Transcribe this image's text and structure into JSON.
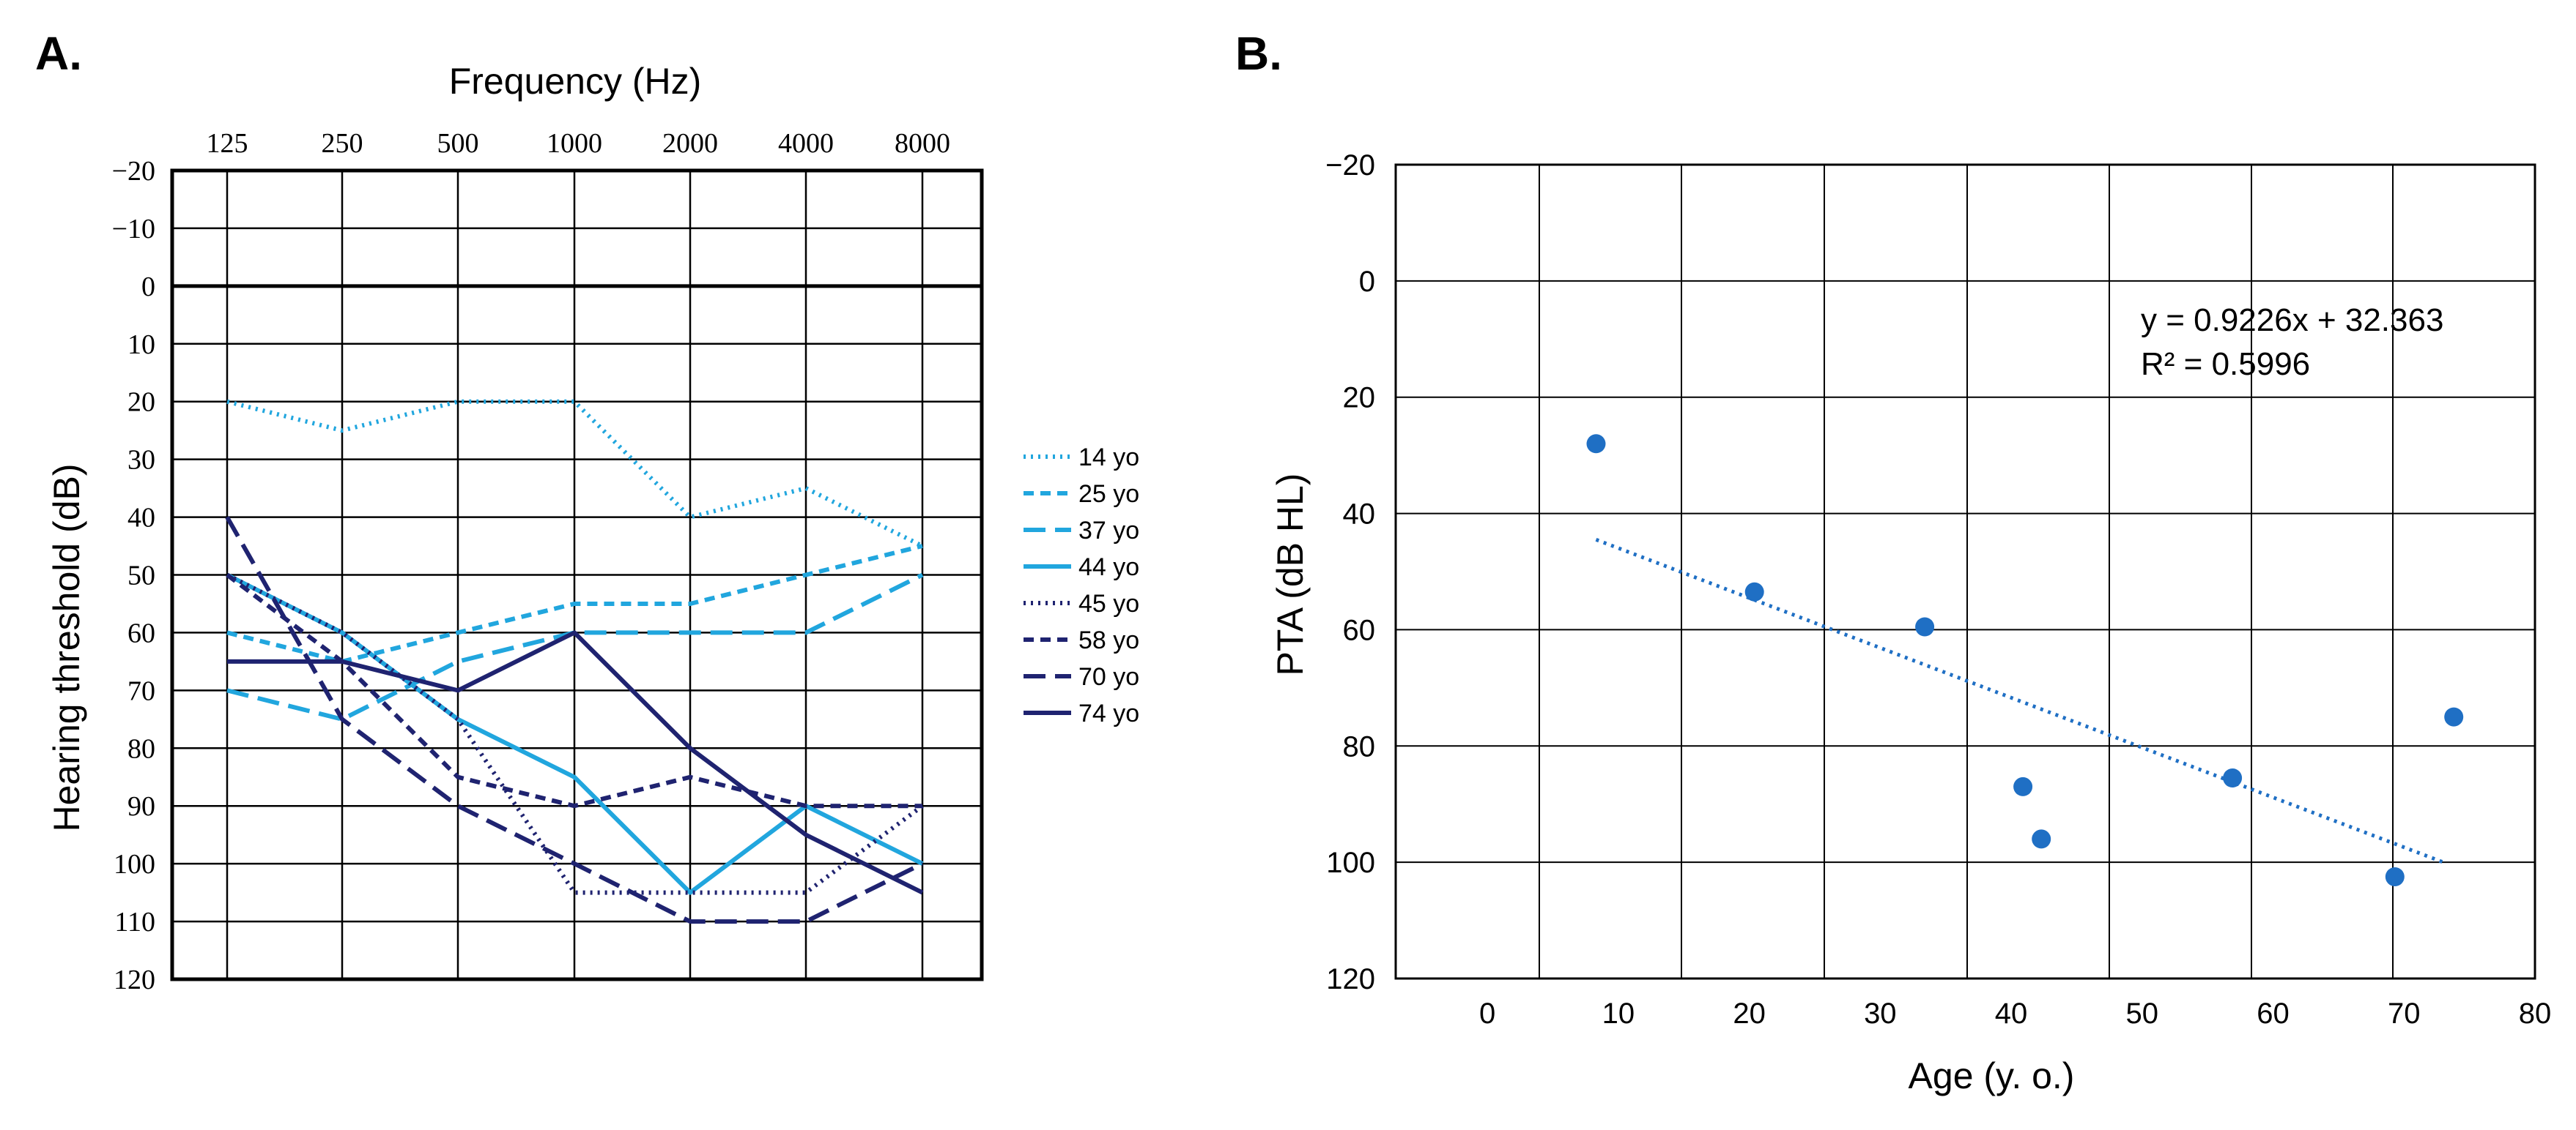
{
  "panel_labels": {
    "a": "A.",
    "b": "B."
  },
  "colors": {
    "light": "#21a6de",
    "dark": "#1f2370",
    "scatter": "#1f6fc4",
    "axis": "#000000",
    "grid": "#000000"
  },
  "chart_data": [
    {
      "type": "line",
      "title": "Frequency (Hz)",
      "xlabel": "Frequency (Hz)",
      "ylabel": "Hearing threshold (dB)",
      "categories": [
        "125",
        "250",
        "500",
        "1000",
        "2000",
        "4000",
        "8000"
      ],
      "y_ticks": [
        "−20",
        "−10",
        "0",
        "10",
        "20",
        "30",
        "40",
        "50",
        "60",
        "70",
        "80",
        "90",
        "100",
        "110",
        "120"
      ],
      "ylim": [
        -20,
        120
      ],
      "y_inverted": true,
      "grid": true,
      "legend": "right",
      "series": [
        {
          "name": "14 yo",
          "values": [
            20,
            25,
            20,
            20,
            40,
            35,
            45
          ],
          "color": "#21a6de",
          "dash": "dot"
        },
        {
          "name": "25 yo",
          "values": [
            60,
            65,
            60,
            55,
            55,
            50,
            45
          ],
          "color": "#21a6de",
          "dash": "short"
        },
        {
          "name": "37 yo",
          "values": [
            70,
            75,
            65,
            60,
            60,
            60,
            50
          ],
          "color": "#21a6de",
          "dash": "long"
        },
        {
          "name": "44 yo",
          "values": [
            50,
            60,
            75,
            85,
            105,
            90,
            100
          ],
          "color": "#21a6de",
          "dash": "solid"
        },
        {
          "name": "45 yo",
          "values": [
            50,
            60,
            75,
            105,
            105,
            105,
            90
          ],
          "color": "#1f2370",
          "dash": "dot"
        },
        {
          "name": "58 yo",
          "values": [
            50,
            65,
            85,
            90,
            85,
            90,
            90
          ],
          "color": "#1f2370",
          "dash": "short"
        },
        {
          "name": "70 yo",
          "values": [
            40,
            75,
            90,
            100,
            110,
            110,
            100
          ],
          "color": "#1f2370",
          "dash": "long"
        },
        {
          "name": "74 yo",
          "values": [
            65,
            65,
            70,
            60,
            80,
            95,
            105
          ],
          "color": "#1f2370",
          "dash": "solid"
        }
      ]
    },
    {
      "type": "scatter",
      "title": "",
      "xlabel": "Age (y. o.)",
      "ylabel": "PTA (dB HL)",
      "x_ticks": [
        "0",
        "10",
        "20",
        "30",
        "40",
        "50",
        "60",
        "70",
        "80"
      ],
      "y_ticks": [
        "−20",
        "0",
        "20",
        "40",
        "60",
        "80",
        "100",
        "120"
      ],
      "xlim": [
        -7,
        80
      ],
      "ylim": [
        -20,
        120
      ],
      "y_inverted": true,
      "grid": true,
      "points": [
        {
          "x": 8.3,
          "y": 28
        },
        {
          "x": 20.4,
          "y": 53.5
        },
        {
          "x": 33.4,
          "y": 59.5
        },
        {
          "x": 40.9,
          "y": 87
        },
        {
          "x": 42.3,
          "y": 96
        },
        {
          "x": 56.9,
          "y": 85.5
        },
        {
          "x": 69.3,
          "y": 102.5
        },
        {
          "x": 73.8,
          "y": 75
        }
      ],
      "trendline": {
        "equation": "y = 0.9226x + 32.363",
        "r2": "R² = 0.5996",
        "slope": 0.9226,
        "intercept": 32.363,
        "x_start": 8.3,
        "x_end": 73
      }
    }
  ]
}
